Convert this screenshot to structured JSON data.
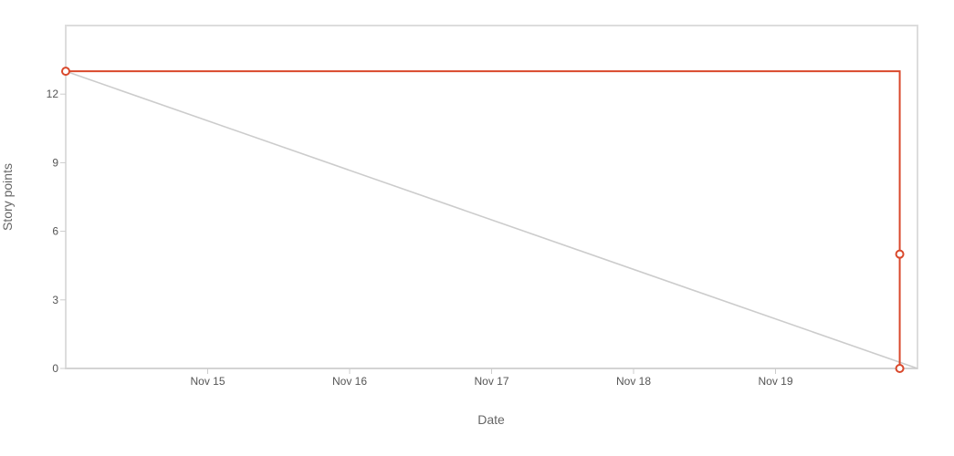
{
  "chart_data": {
    "type": "line",
    "title": "",
    "xlabel": "Date",
    "ylabel": "Story points",
    "x_ticks": [
      "Nov 15",
      "Nov 16",
      "Nov 17",
      "Nov 18",
      "Nov 19"
    ],
    "y_ticks": [
      "0",
      "3",
      "6",
      "9",
      "12"
    ],
    "xlim": [
      "Nov 14, 00:00",
      "Nov 20, 00:00"
    ],
    "ylim": [
      0,
      15
    ],
    "grid": false,
    "series": [
      {
        "color": "#cccccc",
        "markers": false,
        "step": false,
        "points": [
          {
            "x": "Nov 14, 00:00",
            "y": 13
          },
          {
            "x": "Nov 20, 00:00",
            "y": 0
          }
        ]
      },
      {
        "color": "#d9482b",
        "markers": true,
        "step": true,
        "points": [
          {
            "x": "Nov 14, 00:00",
            "y": 13
          },
          {
            "x": "Nov 19, 21:00",
            "y": 13
          },
          {
            "x": "Nov 19, 21:00",
            "y": 5
          },
          {
            "x": "Nov 19, 21:00",
            "y": 0
          }
        ]
      }
    ]
  }
}
